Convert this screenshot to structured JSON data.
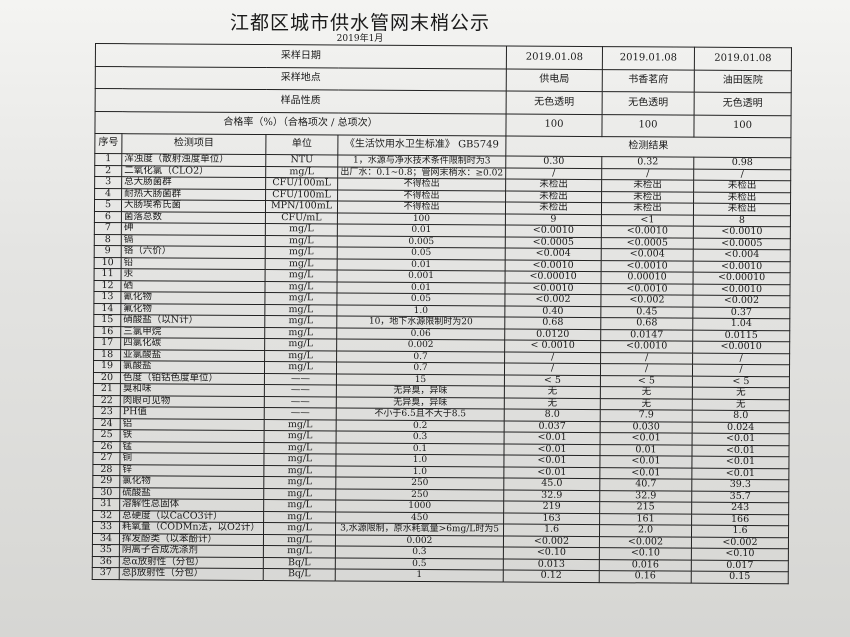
{
  "title": "江都区城市供水管网末梢公示",
  "subtitle": "2019年1月",
  "header_rows": [
    {
      "label": "采样日期",
      "values": [
        "2019.01.08",
        "2019.01.08",
        "2019.01.08"
      ]
    },
    {
      "label": "采样地点",
      "values": [
        "供电局",
        "书香茗府",
        "油田医院"
      ]
    },
    {
      "label": "样品性质",
      "values": [
        "无色透明",
        "无色透明",
        "无色透明"
      ]
    },
    {
      "label": "合格率（%）（合格项次 / 总项次）",
      "values": [
        "100",
        "100",
        "100"
      ]
    }
  ],
  "columns": {
    "no": "序号",
    "item": "检测项目",
    "unit": "单位",
    "standard": "《生活饮用水卫生标准》 GB5749",
    "results": "检测结果"
  },
  "rows": [
    [
      "1",
      "浑浊度（散射浊度单位）",
      "NTU",
      "1，水源与净水技术条件限制时为3",
      "0.30",
      "0.32",
      "0.98"
    ],
    [
      "2",
      "二氧化氯（CLO2）",
      "mg/L",
      "出厂水：0.1~0.8；管网末梢水：≥0.02",
      "/",
      "/",
      "/"
    ],
    [
      "3",
      "总大肠菌群",
      "CFU/100mL",
      "不得检出",
      "未检出",
      "未检出",
      "未检出"
    ],
    [
      "4",
      "耐热大肠菌群",
      "CFU/100mL",
      "不得检出",
      "未检出",
      "未检出",
      "未检出"
    ],
    [
      "5",
      "大肠埃希氏菌",
      "MPN/100mL",
      "不得检出",
      "未检出",
      "未检出",
      "未检出"
    ],
    [
      "6",
      "菌落总数",
      "CFU/mL",
      "100",
      "9",
      "<1",
      "8"
    ],
    [
      "7",
      "砷",
      "mg/L",
      "0.01",
      "<0.0010",
      "<0.0010",
      "<0.0010"
    ],
    [
      "8",
      "镉",
      "mg/L",
      "0.005",
      "<0.0005",
      "<0.0005",
      "<0.0005"
    ],
    [
      "9",
      "铬（六价）",
      "mg/L",
      "0.05",
      "<0.004",
      "<0.004",
      "<0.004"
    ],
    [
      "10",
      "铅",
      "mg/L",
      "0.01",
      "<0.0010",
      "<0.0010",
      "<0.0010"
    ],
    [
      "11",
      "汞",
      "mg/L",
      "0.001",
      "<0.00010",
      "0.00010",
      "<0.00010"
    ],
    [
      "12",
      "硒",
      "mg/L",
      "0.01",
      "<0.0010",
      "<0.0010",
      "<0.0010"
    ],
    [
      "13",
      "氰化物",
      "mg/L",
      "0.05",
      "<0.002",
      "<0.002",
      "<0.002"
    ],
    [
      "14",
      "氟化物",
      "mg/L",
      "1.0",
      "0.40",
      "0.45",
      "0.37"
    ],
    [
      "15",
      "硝酸盐（以N计）",
      "mg/L",
      "10，地下水源限制时为20",
      "0.68",
      "0.68",
      "1.04"
    ],
    [
      "16",
      "三氯甲烷",
      "mg/L",
      "0.06",
      "0.0120",
      "0.0147",
      "0.0115"
    ],
    [
      "17",
      "四氯化碳",
      "mg/L",
      "0.002",
      "< 0.0010",
      "<0.0010",
      "<0.0010"
    ],
    [
      "18",
      "亚氯酸盐",
      "mg/L",
      "0.7",
      "/",
      "/",
      "/"
    ],
    [
      "19",
      "氯酸盐",
      "mg/L",
      "0.7",
      "/",
      "/",
      "/"
    ],
    [
      "20",
      "色度（铂钴色度单位）",
      "——",
      "15",
      "< 5",
      "< 5",
      "< 5"
    ],
    [
      "21",
      "臭和味",
      "——",
      "无异臭，异味",
      "无",
      "无",
      "无"
    ],
    [
      "22",
      "肉眼可见物",
      "——",
      "无异臭，异味",
      "无",
      "无",
      "无"
    ],
    [
      "23",
      "PH值",
      "——",
      "不小于6.5且不大于8.5",
      "8.0",
      "7.9",
      "8.0"
    ],
    [
      "24",
      "铝",
      "mg/L",
      "0.2",
      "0.037",
      "0.030",
      "0.024"
    ],
    [
      "25",
      "铁",
      "mg/L",
      "0.3",
      "<0.01",
      "<0.01",
      "<0.01"
    ],
    [
      "26",
      "锰",
      "mg/L",
      "0.1",
      "<0.01",
      "0.01",
      "<0.01"
    ],
    [
      "27",
      "铜",
      "mg/L",
      "1.0",
      "<0.01",
      "<0.01",
      "<0.01"
    ],
    [
      "28",
      "锌",
      "mg/L",
      "1.0",
      "<0.01",
      "<0.01",
      "<0.01"
    ],
    [
      "29",
      "氯化物",
      "mg/L",
      "250",
      "45.0",
      "40.7",
      "39.3"
    ],
    [
      "30",
      "硫酸盐",
      "mg/L",
      "250",
      "32.9",
      "32.9",
      "35.7"
    ],
    [
      "31",
      "溶解性总固体",
      "mg/L",
      "1000",
      "219",
      "215",
      "243"
    ],
    [
      "32",
      "总硬度（以CaCO3计）",
      "mg/L",
      "450",
      "163",
      "161",
      "166"
    ],
    [
      "33",
      "耗氧量（CODMn法，以O2计）",
      "mg/L",
      "3,水源限制，原水耗氧量>6mg/L时为5",
      "1.6",
      "2.0",
      "1.6"
    ],
    [
      "34",
      "挥发酚类（以苯酚计）",
      "mg/L",
      "0.002",
      "<0.002",
      "<0.002",
      "<0.002"
    ],
    [
      "35",
      "阴离子合成洗涤剂",
      "mg/L",
      "0.3",
      "<0.10",
      "<0.10",
      "<0.10"
    ],
    [
      "36",
      "总α放射性（分包）",
      "Bq/L",
      "0.5",
      "0.013",
      "0.016",
      "0.017"
    ],
    [
      "37",
      "总β放射性（分包）",
      "Bq/L",
      "1",
      "0.12",
      "0.16",
      "0.15"
    ]
  ]
}
